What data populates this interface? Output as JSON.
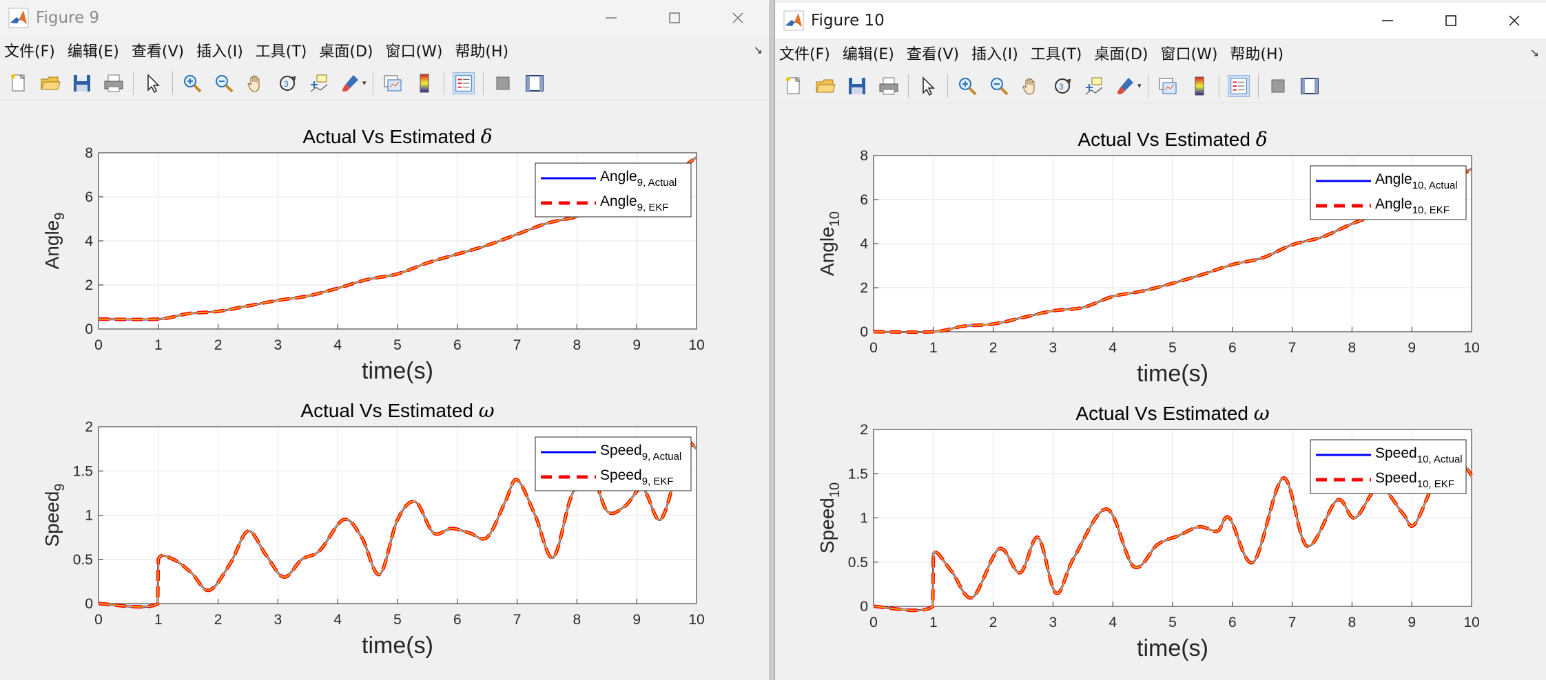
{
  "menu": [
    "文件(F)",
    "编辑(E)",
    "查看(V)",
    "插入(I)",
    "工具(T)",
    "桌面(D)",
    "窗口(W)",
    "帮助(H)"
  ],
  "toolbar_icons": [
    "new-figure-icon",
    "open-file-icon",
    "save-icon",
    "print-icon",
    "select-arrow-icon",
    "zoom-in-icon",
    "zoom-out-icon",
    "pan-hand-icon",
    "rotate-3d-icon",
    "data-cursor-icon",
    "brush-icon",
    "link-plot-icon",
    "colorbar-icon",
    "legend-icon",
    "hide-plot-tools-icon",
    "show-plot-tools-icon"
  ],
  "colors": {
    "actual": "#0000ff",
    "ekf": "#ff0000",
    "overlay": "#e8a418",
    "grid": "#e5e5e5"
  },
  "windows": [
    {
      "id": "win9",
      "title": "Figure 9",
      "plots": [
        {
          "title": "Actual Vs Estimated",
          "title_symbol": "δ",
          "ylabel": "Angle",
          "ylabel_sub": "9",
          "xlabel": "time(s)",
          "legend": [
            {
              "name": "Angle",
              "sub": "9, Actual",
              "style": "solid"
            },
            {
              "name": "Angle",
              "sub": "9, EKF",
              "style": "dashed"
            }
          ],
          "chart_data": {
            "type": "line",
            "xlim": [
              0,
              10
            ],
            "ylim": [
              0,
              8
            ],
            "xticks": [
              "0",
              "1",
              "2",
              "3",
              "4",
              "5",
              "6",
              "7",
              "8",
              "9",
              "10"
            ],
            "yticks": [
              "0",
              "2",
              "4",
              "6",
              "8"
            ],
            "grid": true,
            "legend_position": "top-right",
            "x": [
              0,
              1,
              1.5,
              2,
              2.5,
              3,
              3.5,
              4,
              4.5,
              5,
              5.5,
              6,
              6.5,
              7,
              7.5,
              8,
              8.5,
              9,
              9.5,
              10
            ],
            "series": [
              {
                "name": "Angle 9, Actual",
                "values": [
                  0.45,
                  0.45,
                  0.7,
                  0.8,
                  1.05,
                  1.3,
                  1.5,
                  1.85,
                  2.25,
                  2.5,
                  3.0,
                  3.4,
                  3.8,
                  4.3,
                  4.8,
                  5.1,
                  5.5,
                  6.0,
                  6.8,
                  7.8
                ]
              },
              {
                "name": "Angle 9, EKF",
                "values": [
                  0.45,
                  0.45,
                  0.7,
                  0.8,
                  1.05,
                  1.3,
                  1.5,
                  1.85,
                  2.25,
                  2.5,
                  3.0,
                  3.4,
                  3.8,
                  4.3,
                  4.8,
                  5.1,
                  5.5,
                  6.0,
                  6.8,
                  7.8
                ]
              }
            ]
          }
        },
        {
          "title": "Actual Vs Estimated",
          "title_symbol": "ω",
          "ylabel": "Speed",
          "ylabel_sub": "9",
          "xlabel": "time(s)",
          "legend": [
            {
              "name": "Speed",
              "sub": "9, Actual",
              "style": "solid"
            },
            {
              "name": "Speed",
              "sub": "9, EKF",
              "style": "dashed"
            }
          ],
          "chart_data": {
            "type": "line",
            "xlim": [
              0,
              10
            ],
            "ylim": [
              0,
              2
            ],
            "xticks": [
              "0",
              "1",
              "2",
              "3",
              "4",
              "5",
              "6",
              "7",
              "8",
              "9",
              "10"
            ],
            "yticks": [
              "0",
              "0.5",
              "1",
              "1.5",
              "2"
            ],
            "grid": true,
            "legend_position": "top-right",
            "x": [
              0,
              0.99,
              1,
              1.25,
              1.55,
              1.85,
              2.2,
              2.5,
              2.8,
              3.1,
              3.4,
              3.7,
              4.1,
              4.4,
              4.7,
              5.0,
              5.3,
              5.6,
              5.9,
              6.2,
              6.5,
              6.8,
              7.0,
              7.3,
              7.6,
              7.9,
              8.2,
              8.5,
              8.8,
              9.1,
              9.4,
              9.7,
              9.8,
              10
            ],
            "series": [
              {
                "name": "Speed 9, Actual",
                "values": [
                  0,
                  0,
                  0.5,
                  0.5,
                  0.35,
                  0.15,
                  0.45,
                  0.82,
                  0.55,
                  0.3,
                  0.5,
                  0.6,
                  0.95,
                  0.75,
                  0.33,
                  0.95,
                  1.15,
                  0.8,
                  0.85,
                  0.8,
                  0.75,
                  1.15,
                  1.4,
                  1.0,
                  0.52,
                  1.2,
                  1.55,
                  1.05,
                  1.1,
                  1.3,
                  0.95,
                  1.6,
                  1.85,
                  1.75
                ]
              },
              {
                "name": "Speed 9, EKF",
                "values": [
                  0,
                  0,
                  0.5,
                  0.5,
                  0.35,
                  0.15,
                  0.45,
                  0.82,
                  0.55,
                  0.3,
                  0.5,
                  0.6,
                  0.95,
                  0.75,
                  0.33,
                  0.95,
                  1.15,
                  0.8,
                  0.85,
                  0.8,
                  0.75,
                  1.15,
                  1.4,
                  1.0,
                  0.52,
                  1.2,
                  1.55,
                  1.05,
                  1.1,
                  1.3,
                  0.95,
                  1.6,
                  1.85,
                  1.75
                ]
              }
            ]
          }
        }
      ]
    },
    {
      "id": "win10",
      "title": "Figure 10",
      "plots": [
        {
          "title": "Actual Vs Estimated",
          "title_symbol": "δ",
          "ylabel": "Angle",
          "ylabel_sub": "10",
          "xlabel": "time(s)",
          "legend": [
            {
              "name": "Angle",
              "sub": "10, Actual",
              "style": "solid"
            },
            {
              "name": "Angle",
              "sub": "10, EKF",
              "style": "dashed"
            }
          ],
          "chart_data": {
            "type": "line",
            "xlim": [
              0,
              10
            ],
            "ylim": [
              0,
              8
            ],
            "xticks": [
              "0",
              "1",
              "2",
              "3",
              "4",
              "5",
              "6",
              "7",
              "8",
              "9",
              "10"
            ],
            "yticks": [
              "0",
              "2",
              "4",
              "6",
              "8"
            ],
            "grid": true,
            "legend_position": "top-right",
            "x": [
              0,
              1,
              1.5,
              2,
              2.5,
              3,
              3.5,
              4,
              4.5,
              5,
              5.5,
              6,
              6.5,
              7,
              7.5,
              8,
              8.5,
              9,
              9.5,
              10
            ],
            "series": [
              {
                "name": "Angle 10, Actual",
                "values": [
                  0,
                  0,
                  0.25,
                  0.35,
                  0.65,
                  0.95,
                  1.1,
                  1.6,
                  1.85,
                  2.2,
                  2.6,
                  3.05,
                  3.35,
                  3.95,
                  4.3,
                  4.9,
                  5.4,
                  5.8,
                  6.6,
                  7.4
                ]
              },
              {
                "name": "Angle 10, EKF",
                "values": [
                  0,
                  0,
                  0.25,
                  0.35,
                  0.65,
                  0.95,
                  1.1,
                  1.6,
                  1.85,
                  2.2,
                  2.6,
                  3.05,
                  3.35,
                  3.95,
                  4.3,
                  4.9,
                  5.4,
                  5.8,
                  6.6,
                  7.4
                ]
              }
            ]
          }
        },
        {
          "title": "Actual Vs Estimated",
          "title_symbol": "ω",
          "ylabel": "Speed",
          "ylabel_sub": "10",
          "xlabel": "time(s)",
          "legend": [
            {
              "name": "Speed",
              "sub": "10, Actual",
              "style": "solid"
            },
            {
              "name": "Speed",
              "sub": "10, EKF",
              "style": "dashed"
            }
          ],
          "chart_data": {
            "type": "line",
            "xlim": [
              0,
              10
            ],
            "ylim": [
              0,
              2
            ],
            "xticks": [
              "0",
              "1",
              "2",
              "3",
              "4",
              "5",
              "6",
              "7",
              "8",
              "9",
              "10"
            ],
            "yticks": [
              "0",
              "0.5",
              "1",
              "1.5",
              "2"
            ],
            "grid": true,
            "legend_position": "top-right",
            "x": [
              0,
              0.99,
              1,
              1.3,
              1.65,
              2.1,
              2.45,
              2.75,
              3.05,
              3.35,
              3.9,
              4.35,
              4.75,
              5.1,
              5.45,
              5.75,
              5.95,
              6.35,
              6.85,
              7.25,
              7.75,
              8.05,
              8.45,
              8.85,
              9.05,
              9.45,
              9.8,
              10
            ],
            "series": [
              {
                "name": "Speed 10, Actual",
                "values": [
                  0,
                  0,
                  0.6,
                  0.4,
                  0.1,
                  0.65,
                  0.38,
                  0.78,
                  0.15,
                  0.55,
                  1.1,
                  0.45,
                  0.7,
                  0.8,
                  0.9,
                  0.85,
                  1.0,
                  0.5,
                  1.45,
                  0.68,
                  1.2,
                  1.0,
                  1.35,
                  1.05,
                  0.93,
                  1.5,
                  1.62,
                  1.48
                ]
              },
              {
                "name": "Speed 10, EKF",
                "values": [
                  0,
                  0,
                  0.6,
                  0.4,
                  0.1,
                  0.65,
                  0.38,
                  0.78,
                  0.15,
                  0.55,
                  1.1,
                  0.45,
                  0.7,
                  0.8,
                  0.9,
                  0.85,
                  1.0,
                  0.5,
                  1.45,
                  0.68,
                  1.2,
                  1.0,
                  1.35,
                  1.05,
                  0.93,
                  1.5,
                  1.62,
                  1.48
                ]
              }
            ]
          }
        }
      ]
    }
  ]
}
